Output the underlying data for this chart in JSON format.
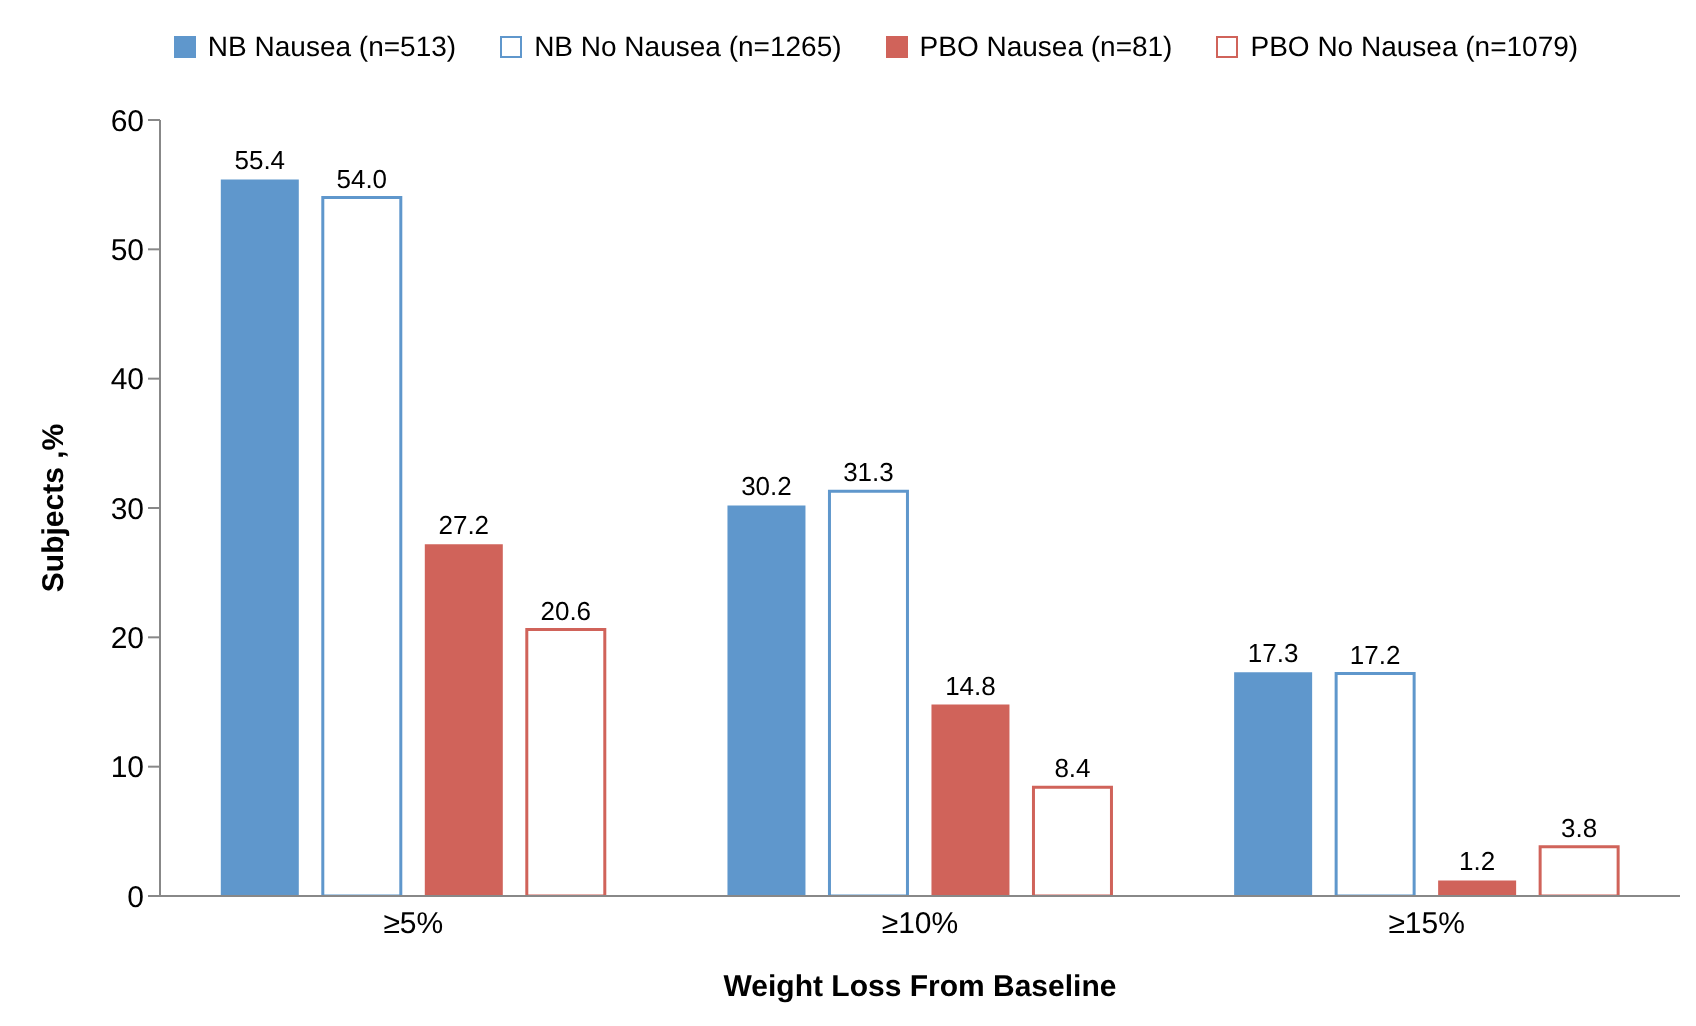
{
  "chart_data": {
    "type": "bar",
    "xlabel": "Weight Loss From Baseline",
    "ylabel": "Subjects ,%",
    "categories": [
      "≥5%",
      "≥10%",
      "≥15%"
    ],
    "series": [
      {
        "name": "NB Nausea (n=513)",
        "color": "#5f97cc",
        "values": [
          55.4,
          30.2,
          17.3
        ],
        "value_labels": [
          "55.4",
          "30.2",
          "17.3"
        ]
      },
      {
        "name": "NB No Nausea (n=1265)",
        "color": "#5f97cc",
        "values": [
          54.0,
          31.3,
          17.2
        ],
        "value_labels": [
          "54.0",
          "31.3",
          "17.2"
        ]
      },
      {
        "name": "PBO Nausea (n=81)",
        "color": "#d0635a",
        "values": [
          27.2,
          14.8,
          1.2
        ],
        "value_labels": [
          "27.2",
          "14.8",
          "1.2"
        ]
      },
      {
        "name": "PBO No Nausea (n=1079)",
        "color": "#d0635a",
        "values": [
          20.6,
          8.4,
          3.8
        ],
        "value_labels": [
          "20.6",
          "8.4",
          "3.8"
        ]
      }
    ],
    "ylim": [
      0,
      60
    ],
    "yticks": [
      0,
      10,
      20,
      30,
      40,
      50,
      60
    ],
    "grid": false,
    "legend": "top"
  }
}
